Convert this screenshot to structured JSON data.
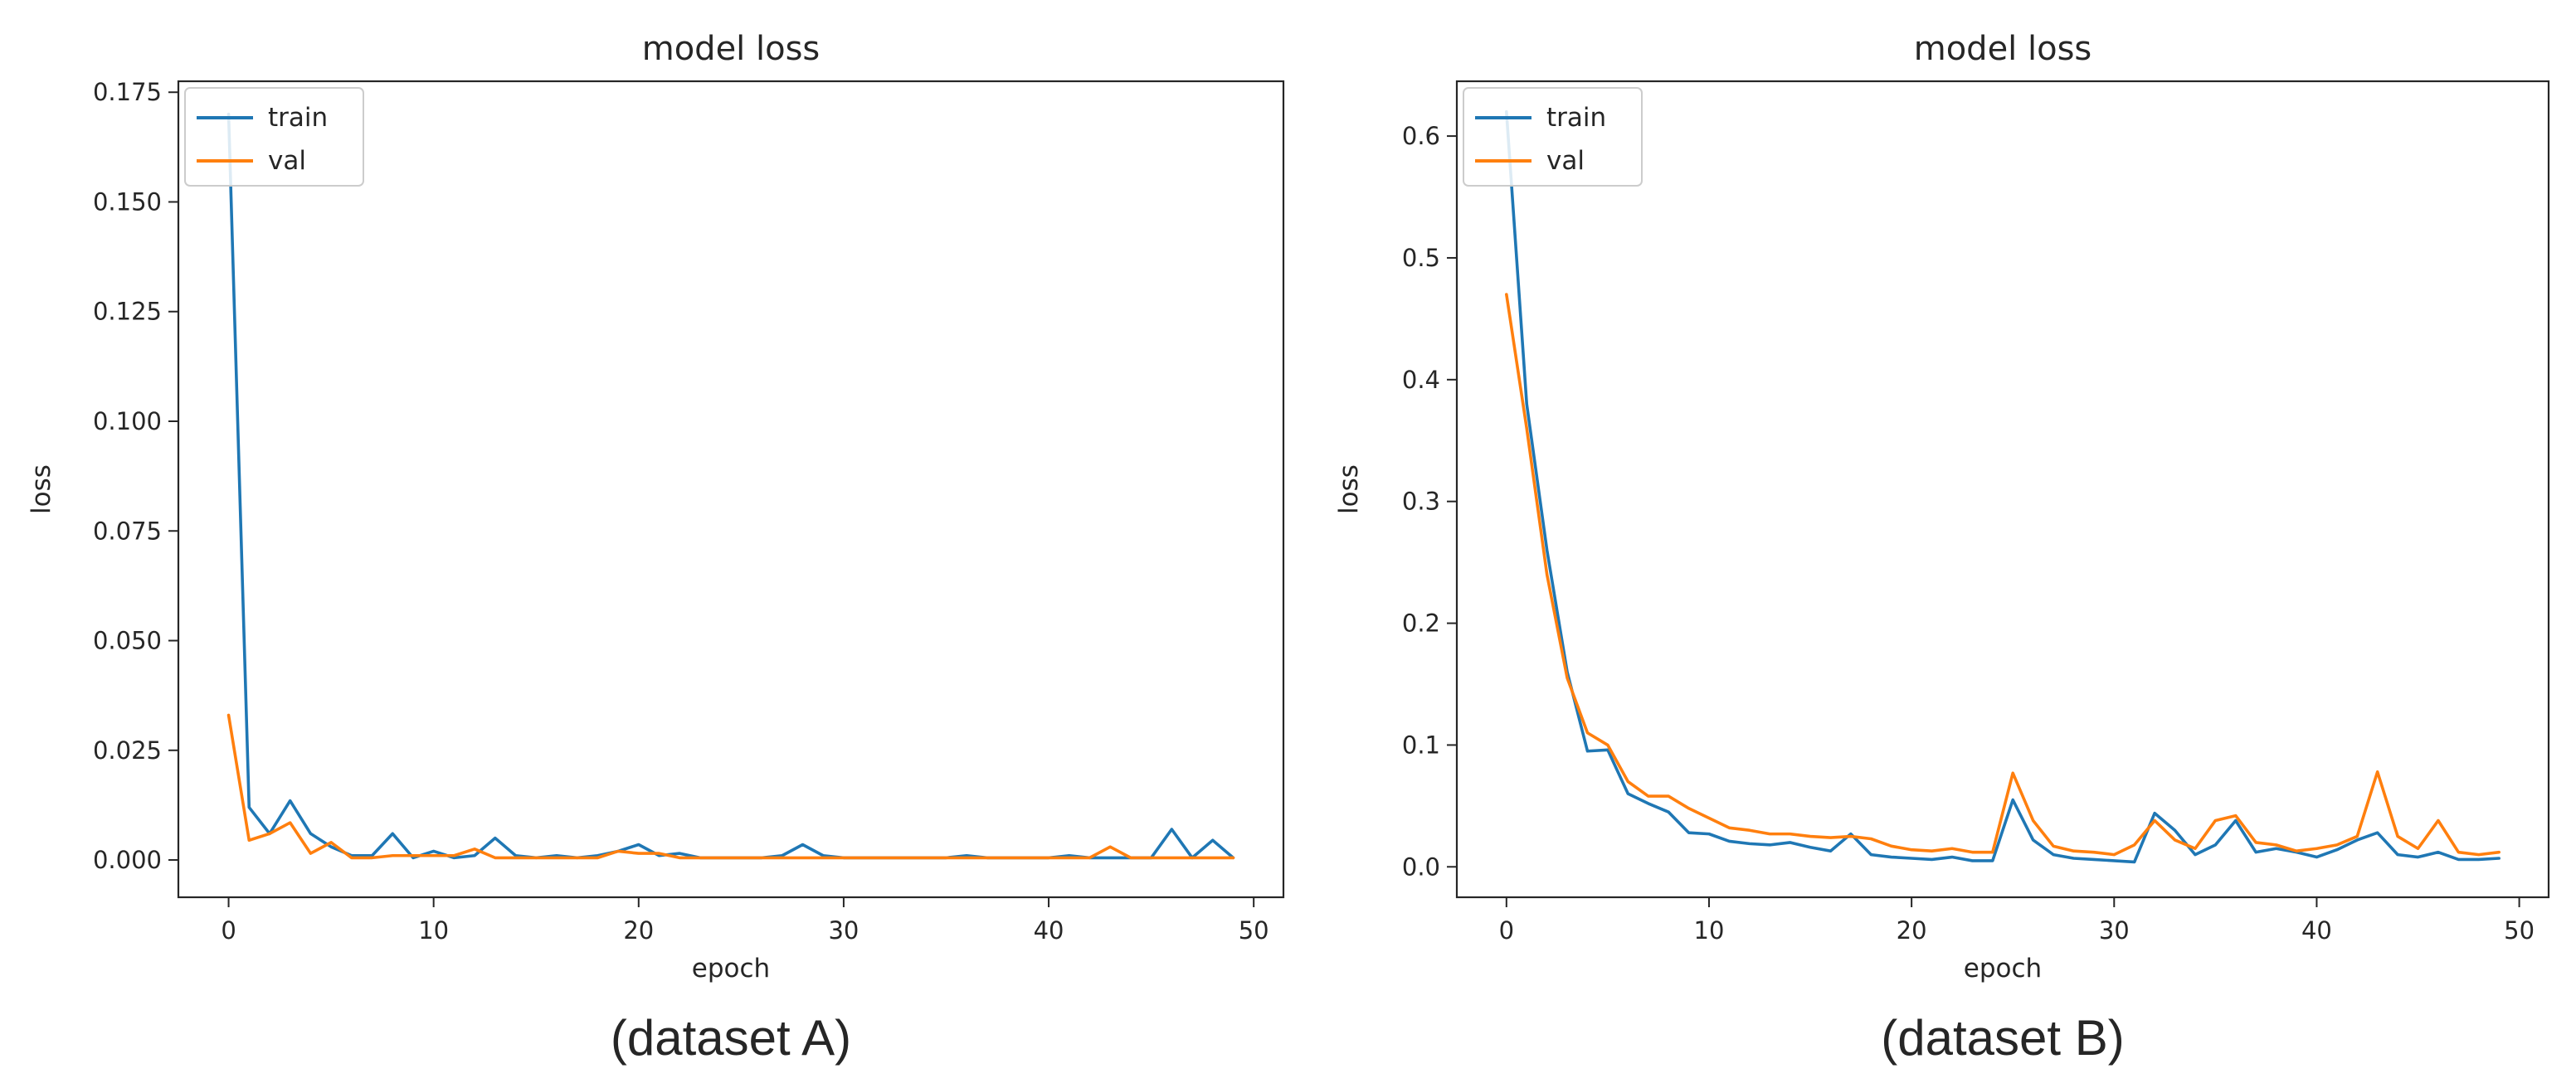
{
  "colors": {
    "train": "#1f77b4",
    "val": "#ff7f0e",
    "axis": "#262626",
    "background": "#ffffff"
  },
  "chart_data": [
    {
      "type": "line",
      "title": "model loss",
      "xlabel": "epoch",
      "ylabel": "loss",
      "caption": "(dataset A)",
      "xlim": [
        -2.45,
        51.45
      ],
      "ylim": [
        -0.0085,
        0.1775
      ],
      "xticks": [
        0,
        10,
        20,
        30,
        40,
        50
      ],
      "xtick_labels": [
        "0",
        "10",
        "20",
        "30",
        "40",
        "50"
      ],
      "yticks": [
        0.0,
        0.025,
        0.05,
        0.075,
        0.1,
        0.125,
        0.15,
        0.175
      ],
      "ytick_labels": [
        "0.000",
        "0.025",
        "0.050",
        "0.075",
        "0.100",
        "0.125",
        "0.150",
        "0.175"
      ],
      "legend": {
        "position": "upper-left",
        "entries": [
          "train",
          "val"
        ]
      },
      "x": [
        0,
        1,
        2,
        3,
        4,
        5,
        6,
        7,
        8,
        9,
        10,
        11,
        12,
        13,
        14,
        15,
        16,
        17,
        18,
        19,
        20,
        21,
        22,
        23,
        24,
        25,
        26,
        27,
        28,
        29,
        30,
        31,
        32,
        33,
        34,
        35,
        36,
        37,
        38,
        39,
        40,
        41,
        42,
        43,
        44,
        45,
        46,
        47,
        48,
        49
      ],
      "series": [
        {
          "name": "train",
          "values": [
            0.17,
            0.012,
            0.006,
            0.0135,
            0.006,
            0.003,
            0.001,
            0.001,
            0.006,
            0.0005,
            0.002,
            0.0005,
            0.001,
            0.005,
            0.001,
            0.0005,
            0.001,
            0.0005,
            0.001,
            0.002,
            0.0035,
            0.001,
            0.0015,
            0.0005,
            0.0005,
            0.0005,
            0.0005,
            0.001,
            0.0035,
            0.001,
            0.0005,
            0.0005,
            0.0005,
            0.0005,
            0.0005,
            0.0005,
            0.001,
            0.0005,
            0.0005,
            0.0005,
            0.0005,
            0.001,
            0.0005,
            0.0005,
            0.0005,
            0.0005,
            0.007,
            0.0005,
            0.0045,
            0.0005
          ]
        },
        {
          "name": "val",
          "values": [
            0.033,
            0.0045,
            0.006,
            0.0085,
            0.0015,
            0.004,
            0.0005,
            0.0005,
            0.001,
            0.001,
            0.001,
            0.001,
            0.0025,
            0.0005,
            0.0005,
            0.0005,
            0.0005,
            0.0005,
            0.0005,
            0.002,
            0.0015,
            0.0015,
            0.0005,
            0.0005,
            0.0005,
            0.0005,
            0.0005,
            0.0005,
            0.0005,
            0.0005,
            0.0005,
            0.0005,
            0.0005,
            0.0005,
            0.0005,
            0.0005,
            0.0005,
            0.0005,
            0.0005,
            0.0005,
            0.0005,
            0.0005,
            0.0005,
            0.003,
            0.0005,
            0.0005,
            0.0005,
            0.0005,
            0.0005,
            0.0005
          ]
        }
      ]
    },
    {
      "type": "line",
      "title": "model loss",
      "xlabel": "epoch",
      "ylabel": "loss",
      "caption": "(dataset B)",
      "xlim": [
        -2.45,
        51.45
      ],
      "ylim": [
        -0.025,
        0.645
      ],
      "xticks": [
        0,
        10,
        20,
        30,
        40,
        50
      ],
      "xtick_labels": [
        "0",
        "10",
        "20",
        "30",
        "40",
        "50"
      ],
      "yticks": [
        0.0,
        0.1,
        0.2,
        0.3,
        0.4,
        0.5,
        0.6
      ],
      "ytick_labels": [
        "0.0",
        "0.1",
        "0.2",
        "0.3",
        "0.4",
        "0.5",
        "0.6"
      ],
      "legend": {
        "position": "upper-left",
        "entries": [
          "train",
          "val"
        ]
      },
      "x": [
        0,
        1,
        2,
        3,
        4,
        5,
        6,
        7,
        8,
        9,
        10,
        11,
        12,
        13,
        14,
        15,
        16,
        17,
        18,
        19,
        20,
        21,
        22,
        23,
        24,
        25,
        26,
        27,
        28,
        29,
        30,
        31,
        32,
        33,
        34,
        35,
        36,
        37,
        38,
        39,
        40,
        41,
        42,
        43,
        44,
        45,
        46,
        47,
        48,
        49
      ],
      "series": [
        {
          "name": "train",
          "values": [
            0.62,
            0.38,
            0.26,
            0.16,
            0.095,
            0.096,
            0.06,
            0.052,
            0.045,
            0.028,
            0.027,
            0.021,
            0.019,
            0.018,
            0.02,
            0.016,
            0.013,
            0.027,
            0.01,
            0.008,
            0.007,
            0.006,
            0.008,
            0.005,
            0.005,
            0.055,
            0.022,
            0.01,
            0.007,
            0.006,
            0.005,
            0.004,
            0.044,
            0.03,
            0.01,
            0.018,
            0.038,
            0.012,
            0.015,
            0.012,
            0.008,
            0.014,
            0.022,
            0.028,
            0.01,
            0.008,
            0.012,
            0.006,
            0.006,
            0.007
          ]
        },
        {
          "name": "val",
          "values": [
            0.47,
            0.36,
            0.24,
            0.155,
            0.11,
            0.1,
            0.07,
            0.058,
            0.058,
            0.048,
            0.04,
            0.032,
            0.03,
            0.027,
            0.027,
            0.025,
            0.024,
            0.025,
            0.023,
            0.017,
            0.014,
            0.013,
            0.015,
            0.012,
            0.012,
            0.077,
            0.038,
            0.017,
            0.013,
            0.012,
            0.01,
            0.018,
            0.038,
            0.022,
            0.015,
            0.038,
            0.042,
            0.02,
            0.018,
            0.013,
            0.015,
            0.018,
            0.025,
            0.078,
            0.025,
            0.015,
            0.038,
            0.012,
            0.01,
            0.012
          ]
        }
      ]
    }
  ]
}
